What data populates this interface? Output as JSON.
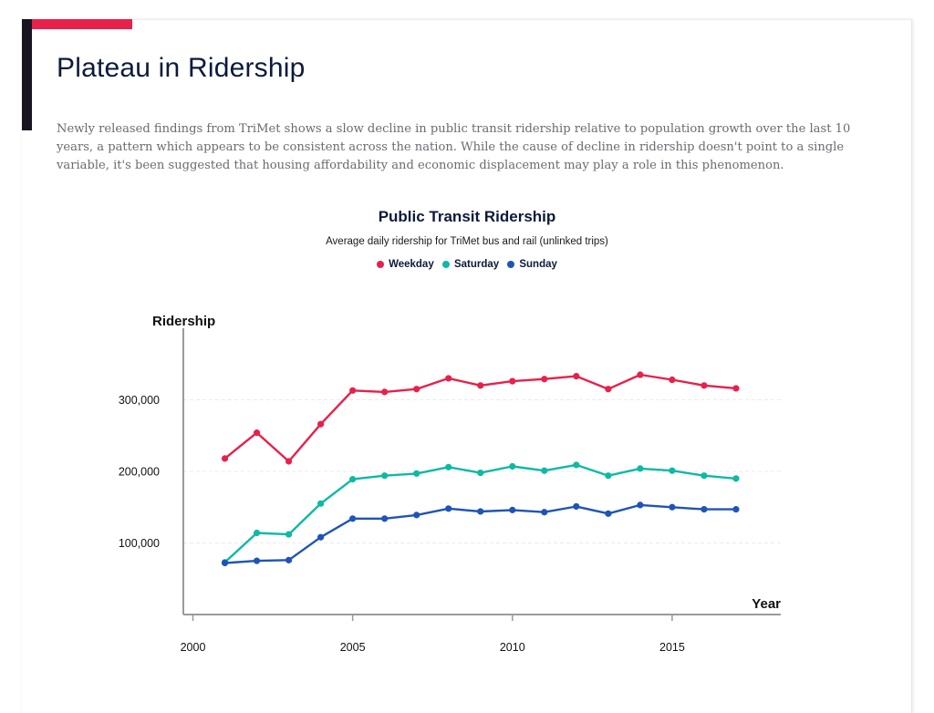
{
  "page": {
    "title": "Plateau in Ridership",
    "intro": "Newly released findings from TriMet shows a slow decline in public transit ridership relative to population growth over the last 10 years, a pattern which appears to be consistent across the nation. While the cause of decline in ridership doesn't point to a single variable, it's been suggested that housing affordability and economic displacement may play a role in this phenomenon."
  },
  "colors": {
    "accent": "#e8204a",
    "accent_dark": "#191520"
  },
  "chart_data": {
    "type": "line",
    "title": "Public Transit Ridership",
    "subtitle": "Average daily ridership for TriMet bus and rail (unlinked trips)",
    "xlabel": "Year",
    "ylabel": "Ridership",
    "xlim": [
      1999.7,
      2018.4
    ],
    "ylim": [
      0,
      400000
    ],
    "x_ticks": [
      2000,
      2005,
      2010,
      2015
    ],
    "y_ticks": [
      100000,
      200000,
      300000
    ],
    "y_tick_labels": [
      "100,000",
      "200,000",
      "300,000"
    ],
    "grid": true,
    "legend_position": "top-center",
    "x": [
      2001,
      2002,
      2003,
      2004,
      2005,
      2006,
      2007,
      2008,
      2009,
      2010,
      2011,
      2012,
      2013,
      2014,
      2015,
      2016,
      2017
    ],
    "series": [
      {
        "name": "Weekday",
        "color": "#e8204a",
        "values": [
          218000,
          254000,
          214000,
          266000,
          313000,
          311000,
          315000,
          330000,
          320000,
          326000,
          329000,
          333000,
          315000,
          335000,
          328000,
          320000,
          316000
        ]
      },
      {
        "name": "Saturday",
        "color": "#0fb9a4",
        "values": [
          73000,
          114000,
          112000,
          155000,
          189000,
          194000,
          197000,
          206000,
          198000,
          207000,
          201000,
          209000,
          194000,
          204000,
          201000,
          194000,
          190000
        ]
      },
      {
        "name": "Sunday",
        "color": "#1f54b7",
        "values": [
          72000,
          75000,
          76000,
          108000,
          134000,
          134000,
          139000,
          148000,
          144000,
          146000,
          143000,
          151000,
          141000,
          153000,
          150000,
          147000,
          147000
        ]
      }
    ]
  }
}
